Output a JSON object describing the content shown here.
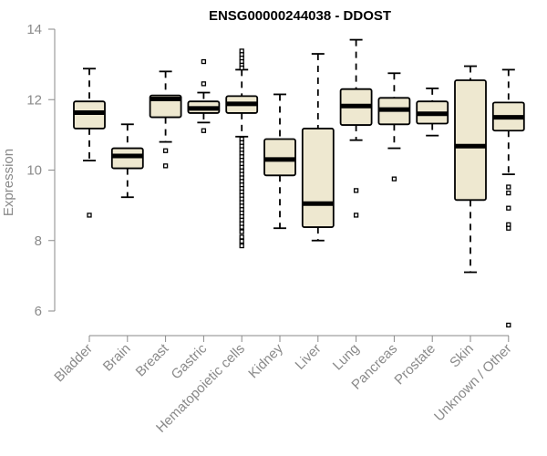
{
  "chart_data": {
    "type": "box",
    "title": "ENSG00000244038 - DDOST",
    "ylabel": "Expression",
    "xlabel": "",
    "ylim": [
      5.3,
      14.0
    ],
    "yticks": [
      6,
      8,
      10,
      12,
      14
    ],
    "colors": {
      "box_fill": "#eee8d0",
      "box_stroke": "#000000",
      "axis": "#8a8a8a"
    },
    "categories": [
      "Bladder",
      "Brain",
      "Breast",
      "Gastric",
      "Hematopoietic cells",
      "Kidney",
      "Liver",
      "Lung",
      "Pancreas",
      "Prostate",
      "Skin",
      "Unknown / Other"
    ],
    "boxes": [
      {
        "category": "Bladder",
        "whisker_low": 10.27,
        "q1": 11.18,
        "median": 11.63,
        "q3": 11.95,
        "whisker_high": 12.88,
        "outliers": [
          8.72
        ]
      },
      {
        "category": "Brain",
        "whisker_low": 9.23,
        "q1": 10.05,
        "median": 10.4,
        "q3": 10.62,
        "whisker_high": 11.3,
        "outliers": []
      },
      {
        "category": "Breast",
        "whisker_low": 10.8,
        "q1": 11.5,
        "median": 12.02,
        "q3": 12.12,
        "whisker_high": 12.8,
        "outliers": [
          10.55,
          10.12
        ]
      },
      {
        "category": "Gastric",
        "whisker_low": 11.35,
        "q1": 11.62,
        "median": 11.75,
        "q3": 11.95,
        "whisker_high": 12.2,
        "outliers": [
          13.08,
          12.45,
          11.12
        ]
      },
      {
        "category": "Hematopoietic cells",
        "whisker_low": 10.95,
        "q1": 11.62,
        "median": 11.88,
        "q3": 12.1,
        "whisker_high": 12.85,
        "outliers": [
          13.38,
          13.28,
          13.18,
          13.08,
          12.98,
          12.9,
          10.88,
          10.78,
          10.68,
          10.58,
          10.48,
          10.38,
          10.28,
          10.18,
          10.08,
          9.98,
          9.88,
          9.78,
          9.68,
          9.58,
          9.48,
          9.38,
          9.28,
          9.18,
          9.08,
          8.98,
          8.88,
          8.78,
          8.68,
          8.58,
          8.48,
          8.38,
          8.25,
          8.1,
          7.98,
          7.85
        ]
      },
      {
        "category": "Kidney",
        "whisker_low": 8.35,
        "q1": 9.85,
        "median": 10.3,
        "q3": 10.88,
        "whisker_high": 12.15,
        "outliers": []
      },
      {
        "category": "Liver",
        "whisker_low": 8.0,
        "q1": 8.38,
        "median": 9.05,
        "q3": 11.18,
        "whisker_high": 13.3,
        "outliers": []
      },
      {
        "category": "Lung",
        "whisker_low": 10.85,
        "q1": 11.28,
        "median": 11.82,
        "q3": 12.3,
        "whisker_high": 13.7,
        "outliers": [
          9.42,
          8.72
        ]
      },
      {
        "category": "Pancreas",
        "whisker_low": 10.62,
        "q1": 11.3,
        "median": 11.72,
        "q3": 12.05,
        "whisker_high": 12.75,
        "outliers": [
          9.75
        ]
      },
      {
        "category": "Prostate",
        "whisker_low": 10.98,
        "q1": 11.32,
        "median": 11.6,
        "q3": 11.95,
        "whisker_high": 12.32,
        "outliers": []
      },
      {
        "category": "Skin",
        "whisker_low": 7.1,
        "q1": 9.15,
        "median": 10.68,
        "q3": 12.55,
        "whisker_high": 12.95,
        "outliers": []
      },
      {
        "category": "Unknown / Other",
        "whisker_low": 9.88,
        "q1": 11.12,
        "median": 11.5,
        "q3": 11.92,
        "whisker_high": 12.85,
        "outliers": [
          9.52,
          9.35,
          8.92,
          8.45,
          8.35,
          5.6
        ]
      }
    ]
  }
}
